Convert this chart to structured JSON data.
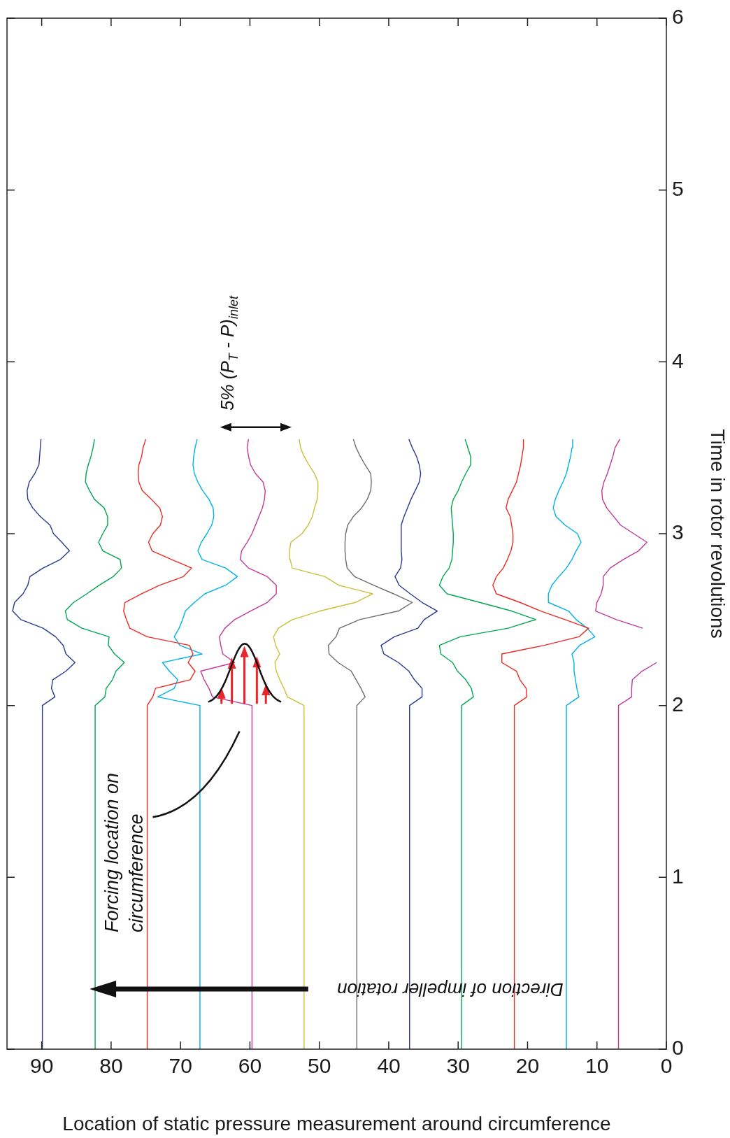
{
  "chart_data": {
    "type": "line",
    "xlabel": "Location of static pressure measurement around circumference",
    "ylabel": "Time in rotor revolutions",
    "xlim": [
      95,
      0
    ],
    "ylim": [
      0,
      6
    ],
    "xticks": [
      90,
      80,
      70,
      60,
      50,
      40,
      30,
      20,
      10,
      0
    ],
    "yticks": [
      0,
      1,
      2,
      3,
      4,
      5,
      6
    ],
    "series": [
      {
        "color": "#2b3990",
        "x": [
          89.9,
          89.9,
          88.1,
          88.6,
          88.4,
          86.5,
          85.2,
          86.5,
          86.9,
          88.0,
          89.8,
          93.0,
          94.2,
          93.9,
          92.7,
          92.0,
          91.7,
          89.8,
          87.3,
          86.0,
          87.1,
          88.3,
          88.8,
          90.2,
          91.3,
          92.0,
          92.1,
          91.8,
          91.0,
          90.4,
          90.3,
          90.2,
          90.1
        ],
        "values": [
          0,
          2,
          2.05,
          2.1,
          2.15,
          2.2,
          2.25,
          2.3,
          2.35,
          2.4,
          2.45,
          2.5,
          2.55,
          2.6,
          2.65,
          2.7,
          2.75,
          2.8,
          2.85,
          2.9,
          2.95,
          3,
          3.05,
          3.1,
          3.15,
          3.2,
          3.25,
          3.3,
          3.35,
          3.4,
          3.45,
          3.5,
          3.55
        ]
      },
      {
        "color": "#00a650",
        "x": [
          82.3,
          82.3,
          80.9,
          80.7,
          79.8,
          79.3,
          78.1,
          79.5,
          80.4,
          80.3,
          84.2,
          86.3,
          86.6,
          85.4,
          83.5,
          81.7,
          79.7,
          78.5,
          78.7,
          81.2,
          81.8,
          81.2,
          80.5,
          80.5,
          81.0,
          82.4,
          83.1,
          83.7,
          83.6,
          83.3,
          82.9,
          82.6,
          82.4
        ],
        "values": [
          0,
          2,
          2.05,
          2.1,
          2.15,
          2.2,
          2.25,
          2.3,
          2.35,
          2.4,
          2.45,
          2.5,
          2.55,
          2.6,
          2.65,
          2.7,
          2.75,
          2.8,
          2.85,
          2.9,
          2.95,
          3,
          3.05,
          3.1,
          3.15,
          3.2,
          3.25,
          3.3,
          3.35,
          3.4,
          3.45,
          3.5,
          3.55
        ]
      },
      {
        "color": "#ee2a24",
        "x": [
          74.8,
          74.8,
          74.0,
          73.6,
          68.6,
          67.9,
          68.9,
          68.2,
          68.7,
          74.8,
          77.3,
          77.8,
          78.2,
          78.0,
          75.6,
          73.0,
          69.6,
          68.4,
          71.3,
          74.1,
          74.6,
          74.0,
          72.9,
          72.6,
          73.0,
          74.2,
          75.5,
          76.0,
          76.1,
          76.0,
          75.6,
          75.4,
          75.0
        ],
        "values": [
          0,
          2,
          2.05,
          2.1,
          2.15,
          2.2,
          2.25,
          2.3,
          2.35,
          2.4,
          2.45,
          2.5,
          2.55,
          2.6,
          2.65,
          2.7,
          2.75,
          2.8,
          2.85,
          2.9,
          2.95,
          3,
          3.05,
          3.1,
          3.15,
          3.2,
          3.25,
          3.3,
          3.35,
          3.4,
          3.45,
          3.5,
          3.55
        ]
      },
      {
        "color": "#00b3e6",
        "x": [
          67.2,
          67.2,
          73.3,
          70.9,
          70.4,
          71.6,
          72.6,
          66.9,
          70.1,
          70.9,
          70.2,
          69.7,
          69.3,
          68.0,
          66.5,
          63.5,
          61.8,
          63.5,
          66.9,
          67.5,
          67.0,
          66.2,
          65.5,
          65.2,
          65.3,
          65.9,
          66.8,
          67.5,
          68.0,
          68.2,
          68.1,
          67.9,
          67.6
        ],
        "values": [
          0,
          2,
          2.05,
          2.1,
          2.15,
          2.2,
          2.25,
          2.3,
          2.35,
          2.4,
          2.45,
          2.5,
          2.55,
          2.6,
          2.65,
          2.7,
          2.75,
          2.8,
          2.85,
          2.9,
          2.95,
          3,
          3.05,
          3.1,
          3.15,
          3.2,
          3.25,
          3.3,
          3.35,
          3.4,
          3.45,
          3.5,
          3.55
        ]
      },
      {
        "color": "#c1399b",
        "x": [
          59.7,
          59.7,
          65.4,
          65.9,
          66.6,
          67.1,
          62.2,
          63.9,
          64.2,
          64.4,
          63.6,
          62.2,
          59.9,
          57.5,
          56.2,
          56.2,
          57.5,
          60.2,
          61.4,
          61.2,
          60.4,
          59.7,
          59.2,
          58.7,
          58.2,
          57.9,
          57.8,
          58.1,
          59.2,
          59.9,
          60.2,
          60.4,
          60.2
        ],
        "values": [
          0,
          2,
          2.05,
          2.1,
          2.15,
          2.2,
          2.25,
          2.3,
          2.35,
          2.4,
          2.45,
          2.5,
          2.55,
          2.6,
          2.65,
          2.7,
          2.75,
          2.8,
          2.85,
          2.9,
          2.95,
          3,
          3.05,
          3.1,
          3.15,
          3.2,
          3.25,
          3.3,
          3.35,
          3.4,
          3.45,
          3.5,
          3.55
        ]
      },
      {
        "color": "#c9c13a",
        "x": [
          52.2,
          52.2,
          54.6,
          55.1,
          55.7,
          56.2,
          56.4,
          55.7,
          56.3,
          56.6,
          55.9,
          53.9,
          49.9,
          44.8,
          42.3,
          47.2,
          49.2,
          53.9,
          54.2,
          54.3,
          54.1,
          52.5,
          51.6,
          51.0,
          50.7,
          50.3,
          50.2,
          50.2,
          50.7,
          51.5,
          52.2,
          52.7,
          52.9
        ],
        "values": [
          0,
          2,
          2.05,
          2.1,
          2.15,
          2.2,
          2.25,
          2.3,
          2.35,
          2.4,
          2.45,
          2.5,
          2.55,
          2.6,
          2.65,
          2.7,
          2.75,
          2.8,
          2.85,
          2.9,
          2.95,
          3,
          3.05,
          3.1,
          3.15,
          3.2,
          3.25,
          3.3,
          3.35,
          3.4,
          3.45,
          3.5,
          3.55
        ]
      },
      {
        "color": "#6d6d6d",
        "x": [
          44.6,
          44.6,
          43.4,
          44.0,
          44.7,
          45.4,
          47.3,
          48.6,
          48.7,
          47.6,
          47.1,
          44.2,
          38.6,
          36.6,
          39.3,
          42.2,
          44.9,
          46.0,
          46.2,
          46.3,
          46.3,
          46.2,
          45.9,
          45.1,
          43.9,
          43.1,
          42.6,
          42.5,
          42.6,
          43.4,
          44.1,
          44.7,
          45.1
        ],
        "values": [
          0,
          2,
          2.05,
          2.1,
          2.15,
          2.2,
          2.25,
          2.3,
          2.35,
          2.4,
          2.45,
          2.5,
          2.55,
          2.6,
          2.65,
          2.7,
          2.75,
          2.8,
          2.85,
          2.9,
          2.95,
          3,
          3.05,
          3.1,
          3.15,
          3.2,
          3.25,
          3.3,
          3.35,
          3.4,
          3.45,
          3.5,
          3.55
        ]
      },
      {
        "color": "#2b3990",
        "x": [
          37.0,
          37.0,
          35.2,
          35.2,
          36.3,
          37.1,
          38.6,
          40.7,
          41.1,
          39.2,
          35.8,
          34.9,
          33.0,
          35.2,
          36.9,
          38.5,
          39.1,
          38.3,
          38.1,
          38.2,
          38.2,
          37.8,
          37.3,
          36.8,
          36.2,
          35.6,
          35.4,
          35.6,
          36.0,
          36.6,
          37.1
        ],
        "values": [
          0,
          2,
          2.05,
          2.1,
          2.15,
          2.2,
          2.25,
          2.3,
          2.35,
          2.4,
          2.45,
          2.5,
          2.55,
          2.6,
          2.65,
          2.7,
          2.75,
          2.8,
          2.85,
          2.9,
          3.05,
          3.1,
          3.15,
          3.2,
          3.25,
          3.3,
          3.35,
          3.4,
          3.45,
          3.5,
          3.55
        ]
      },
      {
        "color": "#00a650",
        "x": [
          29.5,
          29.5,
          27.8,
          28.1,
          28.9,
          30.1,
          30.8,
          32.5,
          32.7,
          29.7,
          22.8,
          18.8,
          22.3,
          26.9,
          31.6,
          32.7,
          32.2,
          31.3,
          30.9,
          30.8,
          30.7,
          30.7,
          30.8,
          30.9,
          31.0,
          30.7,
          30.0,
          29.5,
          28.9,
          28.2,
          28.2,
          28.6,
          29.0
        ],
        "values": [
          0,
          2,
          2.05,
          2.1,
          2.15,
          2.2,
          2.25,
          2.3,
          2.35,
          2.4,
          2.45,
          2.5,
          2.55,
          2.6,
          2.65,
          2.7,
          2.75,
          2.8,
          2.85,
          2.9,
          2.95,
          3,
          3.05,
          3.1,
          3.15,
          3.2,
          3.25,
          3.3,
          3.35,
          3.4,
          3.45,
          3.5,
          3.55
        ]
      },
      {
        "color": "#ee2a24",
        "x": [
          21.9,
          21.9,
          20.1,
          20.2,
          21.1,
          21.6,
          23.7,
          23.7,
          17.6,
          12.6,
          11.2,
          14.6,
          18.1,
          21.1,
          24.5,
          25.0,
          24.5,
          23.5,
          22.9,
          22.4,
          22.1,
          22.1,
          22.3,
          22.5,
          23.1,
          22.8,
          22.2,
          21.6,
          21.3,
          21.0,
          20.8,
          20.6,
          20.6
        ],
        "values": [
          0,
          2,
          2.05,
          2.1,
          2.15,
          2.2,
          2.25,
          2.3,
          2.35,
          2.4,
          2.45,
          2.5,
          2.55,
          2.6,
          2.65,
          2.7,
          2.75,
          2.8,
          2.85,
          2.9,
          2.95,
          3,
          3.05,
          3.1,
          3.15,
          3.2,
          3.25,
          3.3,
          3.35,
          3.4,
          3.45,
          3.5,
          3.55
        ]
      },
      {
        "color": "#00b3e6",
        "x": [
          14.4,
          14.4,
          12.6,
          12.9,
          13.1,
          13.3,
          13.3,
          13.6,
          12.5,
          10.3,
          11.4,
          13.0,
          14.1,
          17.0,
          17.0,
          16.5,
          15.5,
          14.4,
          13.6,
          13.0,
          12.3,
          12.8,
          14.6,
          15.9,
          16.3,
          16.0,
          15.5,
          14.9,
          14.4,
          14.1,
          13.8,
          13.6,
          13.5
        ],
        "values": [
          0,
          2,
          2.05,
          2.1,
          2.15,
          2.2,
          2.25,
          2.3,
          2.35,
          2.4,
          2.45,
          2.5,
          2.55,
          2.6,
          2.65,
          2.7,
          2.75,
          2.8,
          2.85,
          2.9,
          2.95,
          3,
          3.05,
          3.1,
          3.15,
          3.2,
          3.25,
          3.3,
          3.35,
          3.4,
          3.45,
          3.5,
          3.55
        ]
      },
      {
        "color": "#c1399b",
        "x": [
          6.9,
          6.9,
          5.0,
          5.0,
          4.9,
          3.5,
          1.4,
          null,
          null,
          null,
          3.4,
          7.2,
          10.2,
          10.0,
          9.4,
          9.1,
          9.1,
          8.1,
          6.2,
          4.0,
          2.8,
          4.7,
          6.6,
          7.6,
          8.6,
          9.2,
          9.3,
          9.0,
          8.5,
          8.1,
          7.7,
          7.4,
          6.7
        ],
        "values": [
          0,
          2,
          2.05,
          2.1,
          2.15,
          2.2,
          2.25,
          null,
          null,
          null,
          2.45,
          2.5,
          2.55,
          2.6,
          2.65,
          2.7,
          2.75,
          2.8,
          2.85,
          2.9,
          2.95,
          3,
          3.05,
          3.1,
          3.15,
          3.2,
          3.25,
          3.3,
          3.35,
          3.4,
          3.45,
          3.5,
          3.55
        ]
      }
    ],
    "annotations": [
      "Forcing location on circumference",
      "Direction of impeller rotation",
      "5% (P$_{T}$ - P)$_{inlet}$"
    ]
  }
}
